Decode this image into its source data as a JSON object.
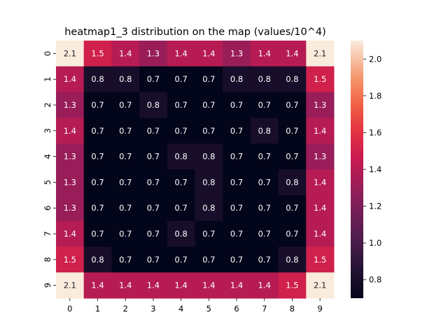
{
  "chart_data": {
    "type": "heatmap",
    "title": "heatmap1_3 distribution on the map (values/10^4)",
    "xlabel": "",
    "ylabel": "",
    "x_categories": [
      "0",
      "1",
      "2",
      "3",
      "4",
      "5",
      "6",
      "7",
      "8",
      "9"
    ],
    "y_categories": [
      "0",
      "1",
      "2",
      "3",
      "4",
      "5",
      "6",
      "7",
      "8",
      "9"
    ],
    "values": [
      [
        2.1,
        1.5,
        1.4,
        1.3,
        1.4,
        1.4,
        1.3,
        1.4,
        1.4,
        2.1
      ],
      [
        1.4,
        0.8,
        0.8,
        0.7,
        0.7,
        0.7,
        0.8,
        0.8,
        0.8,
        1.5
      ],
      [
        1.3,
        0.7,
        0.7,
        0.8,
        0.7,
        0.7,
        0.7,
        0.7,
        0.7,
        1.3
      ],
      [
        1.4,
        0.7,
        0.7,
        0.7,
        0.7,
        0.7,
        0.7,
        0.8,
        0.7,
        1.4
      ],
      [
        1.3,
        0.7,
        0.7,
        0.7,
        0.8,
        0.8,
        0.7,
        0.7,
        0.7,
        1.3
      ],
      [
        1.3,
        0.7,
        0.7,
        0.7,
        0.7,
        0.8,
        0.7,
        0.7,
        0.8,
        1.4
      ],
      [
        1.3,
        0.7,
        0.7,
        0.7,
        0.7,
        0.8,
        0.7,
        0.7,
        0.7,
        1.4
      ],
      [
        1.4,
        0.7,
        0.7,
        0.7,
        0.8,
        0.7,
        0.7,
        0.7,
        0.7,
        1.4
      ],
      [
        1.5,
        0.8,
        0.7,
        0.7,
        0.7,
        0.7,
        0.7,
        0.7,
        0.8,
        1.5
      ],
      [
        2.1,
        1.4,
        1.4,
        1.4,
        1.4,
        1.4,
        1.4,
        1.4,
        1.5,
        2.1
      ]
    ],
    "colorbar": {
      "range": [
        0.7,
        2.1
      ],
      "ticks": [
        0.8,
        1.0,
        1.2,
        1.4,
        1.6,
        1.8,
        2.0
      ],
      "tick_labels": [
        "0.8",
        "1.0",
        "1.2",
        "1.4",
        "1.6",
        "1.8",
        "2.0"
      ],
      "colormap": "rocket"
    },
    "grid": false
  }
}
